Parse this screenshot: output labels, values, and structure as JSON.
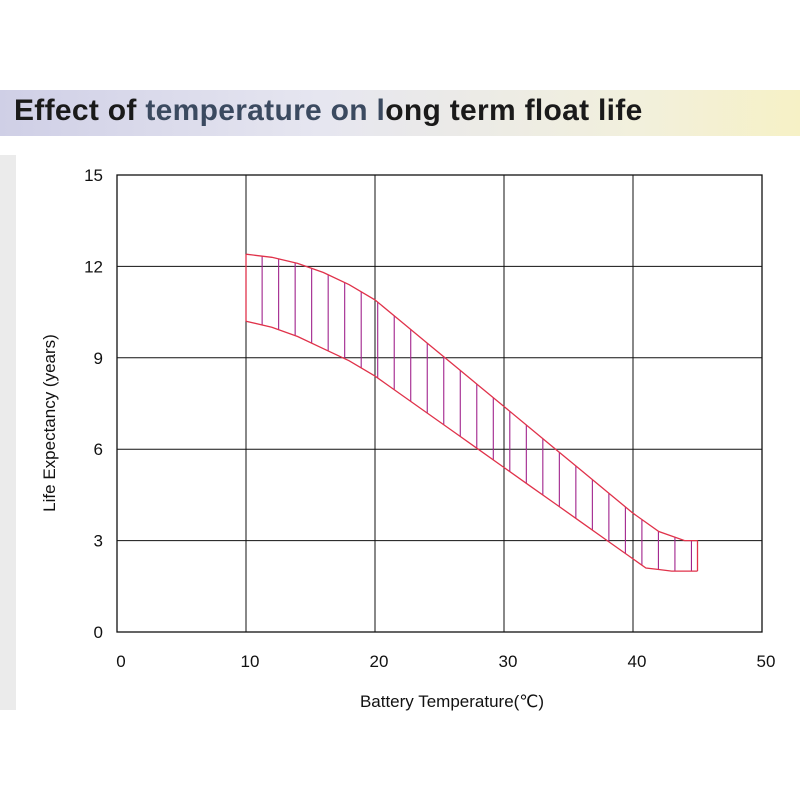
{
  "title": {
    "part1": "Effect of ",
    "part2": "temperature on l",
    "part3": "ong term float life"
  },
  "colors": {
    "band": "#e0324a",
    "hatch": "#a0228c",
    "grid": "#111111"
  },
  "chart_data": {
    "type": "area",
    "title": "Effect of temperature on long term float life",
    "xlabel": "Battery Temperature(℃)",
    "ylabel": "Life Expectancy (years)",
    "xlim": [
      0,
      50
    ],
    "ylim": [
      0,
      15
    ],
    "xticks": [
      0,
      10,
      20,
      30,
      40,
      50
    ],
    "yticks": [
      0,
      3,
      6,
      9,
      12,
      15
    ],
    "grid": true,
    "series": [
      {
        "x": [
          10,
          12,
          14,
          16,
          18,
          20,
          22,
          24,
          26,
          28,
          30,
          32,
          34,
          36,
          38,
          40,
          42,
          44,
          45
        ],
        "values": [
          12.4,
          12.3,
          12.1,
          11.8,
          11.4,
          10.9,
          10.2,
          9.5,
          8.8,
          8.1,
          7.4,
          6.7,
          6.0,
          5.3,
          4.6,
          3.9,
          3.3,
          3.0,
          3.0
        ]
      },
      {
        "x": [
          10,
          12,
          14,
          16,
          18,
          20,
          22,
          24,
          26,
          28,
          30,
          32,
          34,
          36,
          38,
          40,
          41,
          42,
          43,
          44,
          45
        ],
        "values": [
          10.2,
          10.0,
          9.7,
          9.3,
          8.9,
          8.4,
          7.8,
          7.2,
          6.6,
          6.0,
          5.4,
          4.8,
          4.2,
          3.6,
          3.0,
          2.4,
          2.1,
          2.05,
          2.0,
          2.0,
          2.0
        ]
      }
    ]
  }
}
